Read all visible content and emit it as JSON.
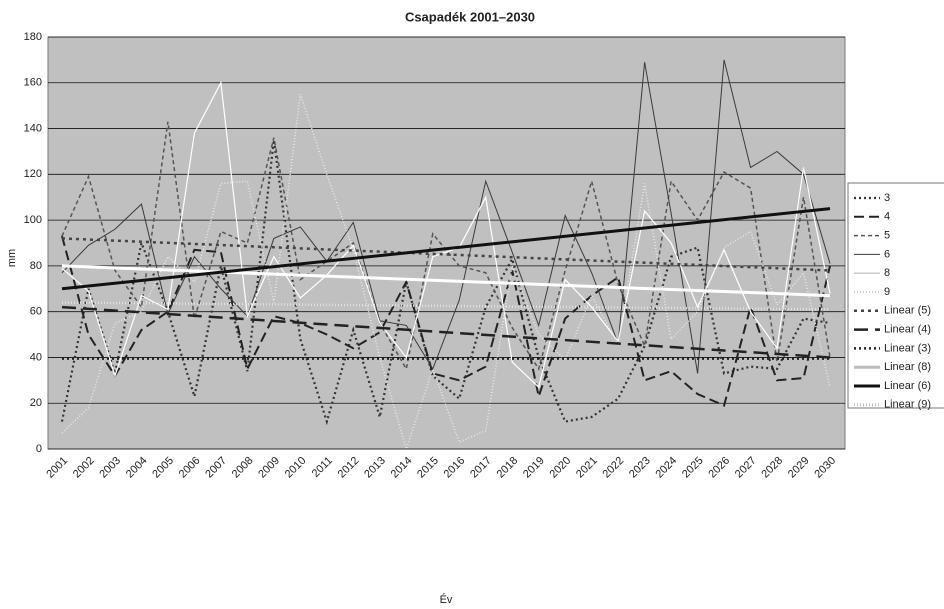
{
  "chart_data": {
    "type": "line",
    "title": "Csapadék 2001–2030",
    "x_label": "Év",
    "y_label": "mm",
    "categories": [
      "2001",
      "2002",
      "2003",
      "2004",
      "2005",
      "2006",
      "2007",
      "2008",
      "2009",
      "2010",
      "2011",
      "2012",
      "2013",
      "2014",
      "2015",
      "2016",
      "2017",
      "2018",
      "2019",
      "2020",
      "2021",
      "2022",
      "2023",
      "2024",
      "2025",
      "2026",
      "2027",
      "2028",
      "2029",
      "2030"
    ],
    "ylim": [
      0,
      180
    ],
    "yticks": [
      0,
      20,
      40,
      60,
      80,
      100,
      120,
      140,
      160,
      180
    ],
    "grid": true,
    "legend": "right",
    "series": [
      {
        "name": "3",
        "color": "#333333",
        "dash": "2,3",
        "width": 2.2,
        "values": [
          12,
          70,
          33,
          90,
          60,
          23,
          80,
          34,
          135,
          48,
          12,
          52,
          14,
          73,
          32,
          22,
          62,
          83,
          40,
          12,
          14,
          22,
          45,
          84,
          88,
          33,
          36,
          35,
          57,
          55
        ]
      },
      {
        "name": "4",
        "color": "#222222",
        "dash": "10,5",
        "width": 2,
        "values": [
          93,
          50,
          32,
          52,
          60,
          87,
          86,
          35,
          58,
          55,
          50,
          44,
          51,
          73,
          33,
          30,
          36,
          78,
          23,
          57,
          67,
          75,
          30,
          34,
          24,
          19,
          62,
          30,
          31,
          80
        ]
      },
      {
        "name": "5",
        "color": "#555555",
        "dash": "4,3",
        "width": 1.5,
        "values": [
          93,
          119,
          78,
          62,
          143,
          57,
          95,
          90,
          136,
          74,
          82,
          90,
          55,
          35,
          94,
          80,
          77,
          53,
          35,
          78,
          117,
          72,
          45,
          117,
          100,
          121,
          114,
          38,
          110,
          40
        ]
      },
      {
        "name": "6",
        "color": "#3a3a3a",
        "dash": "",
        "width": 1,
        "values": [
          77,
          89,
          96,
          107,
          59,
          84,
          70,
          58,
          92,
          97,
          82,
          99,
          56,
          54,
          35,
          65,
          117,
          86,
          54,
          102,
          77,
          46,
          169,
          103,
          33,
          170,
          123,
          130,
          120,
          81
        ]
      },
      {
        "name": "8",
        "color": "#ffffff",
        "dash": "",
        "width": 1.2,
        "values": [
          79,
          69,
          32,
          67,
          61,
          138,
          160,
          58,
          84,
          66,
          76,
          89,
          55,
          40,
          84,
          88,
          110,
          38,
          27,
          74,
          62,
          47,
          104,
          90,
          62,
          87,
          60,
          44,
          123,
          68
        ]
      },
      {
        "name": "9",
        "color": "#e8e8e8",
        "dash": "1,2",
        "width": 1.5,
        "values": [
          7,
          18,
          55,
          60,
          84,
          73,
          116,
          117,
          64,
          155,
          120,
          87,
          40,
          0,
          35,
          3,
          8,
          80,
          50,
          39,
          67,
          46,
          116,
          48,
          60,
          88,
          95,
          63,
          77,
          27
        ]
      }
    ],
    "trendlines": [
      {
        "name": "Linear (5)",
        "color": "#444444",
        "dash": "3,4",
        "width": 2.5,
        "values": [
          92,
          78
        ]
      },
      {
        "name": "Linear (4)",
        "color": "#222222",
        "dash": "14,7",
        "width": 2.5,
        "values": [
          62,
          40
        ]
      },
      {
        "name": "Linear (3)",
        "color": "#222222",
        "dash": "2,3",
        "width": 2.5,
        "values": [
          39.5,
          39.5
        ]
      },
      {
        "name": "Linear (8)",
        "color": "#ffffff",
        "dash": "",
        "width": 3,
        "values": [
          80,
          67
        ]
      },
      {
        "name": "Linear (6)",
        "color": "#111111",
        "dash": "",
        "width": 3,
        "values": [
          70,
          105
        ]
      },
      {
        "name": "Linear (9)",
        "color": "#e0e0e0",
        "dash": "1,2",
        "width": 2.5,
        "values": [
          64,
          61
        ]
      }
    ]
  }
}
